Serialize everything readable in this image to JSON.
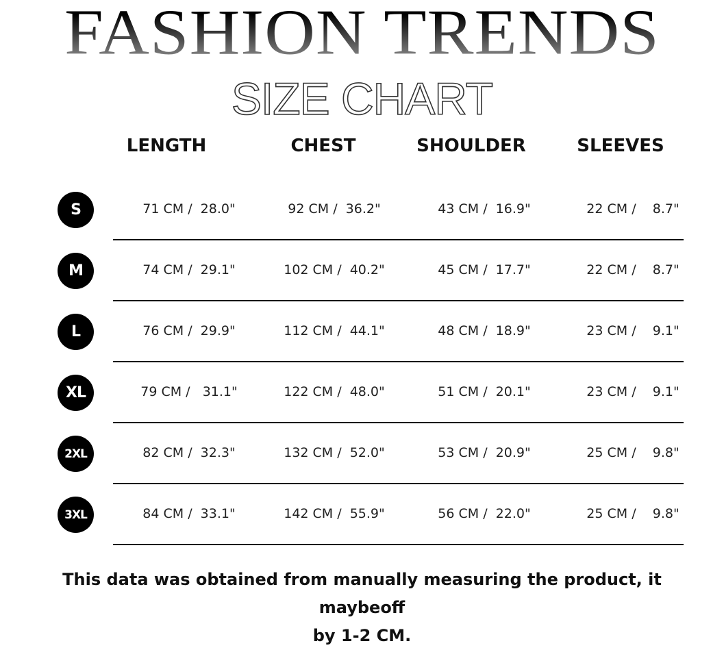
{
  "header": {
    "brand": "FASHION TRENDS",
    "subtitle": "SIZE CHART"
  },
  "columns": [
    "LENGTH",
    "CHEST",
    "SHOULDER",
    "SLEEVES"
  ],
  "rows": [
    {
      "size": "S",
      "values": [
        "71 CM /  28.0\"",
        "92 CM /  36.2\"",
        "43 CM /  16.9\"",
        "22 CM /    8.7\""
      ]
    },
    {
      "size": "M",
      "values": [
        "74 CM /  29.1\"",
        "102 CM /  40.2\"",
        "45 CM /  17.7\"",
        "22 CM /    8.7\""
      ]
    },
    {
      "size": "L",
      "values": [
        "76 CM /  29.9\"",
        "112 CM /  44.1\"",
        "48 CM /  18.9\"",
        "23 CM /    9.1\""
      ]
    },
    {
      "size": "XL",
      "values": [
        "79 CM /   31.1\"",
        "122 CM /  48.0\"",
        "51 CM /  20.1\"",
        "23 CM /    9.1\""
      ]
    },
    {
      "size": "2XL",
      "values": [
        "82 CM /  32.3\"",
        "132 CM /  52.0\"",
        "53 CM /  20.9\"",
        "25 CM /    9.8\""
      ]
    },
    {
      "size": "3XL",
      "values": [
        "84 CM /  33.1\"",
        "142 CM /  55.9\"",
        "56 CM /  22.0\"",
        "25 CM /    9.8\""
      ]
    }
  ],
  "footer": {
    "line1": "This data was obtained from manually measuring the product, it maybeoff",
    "line2": "by 1-2 CM."
  }
}
